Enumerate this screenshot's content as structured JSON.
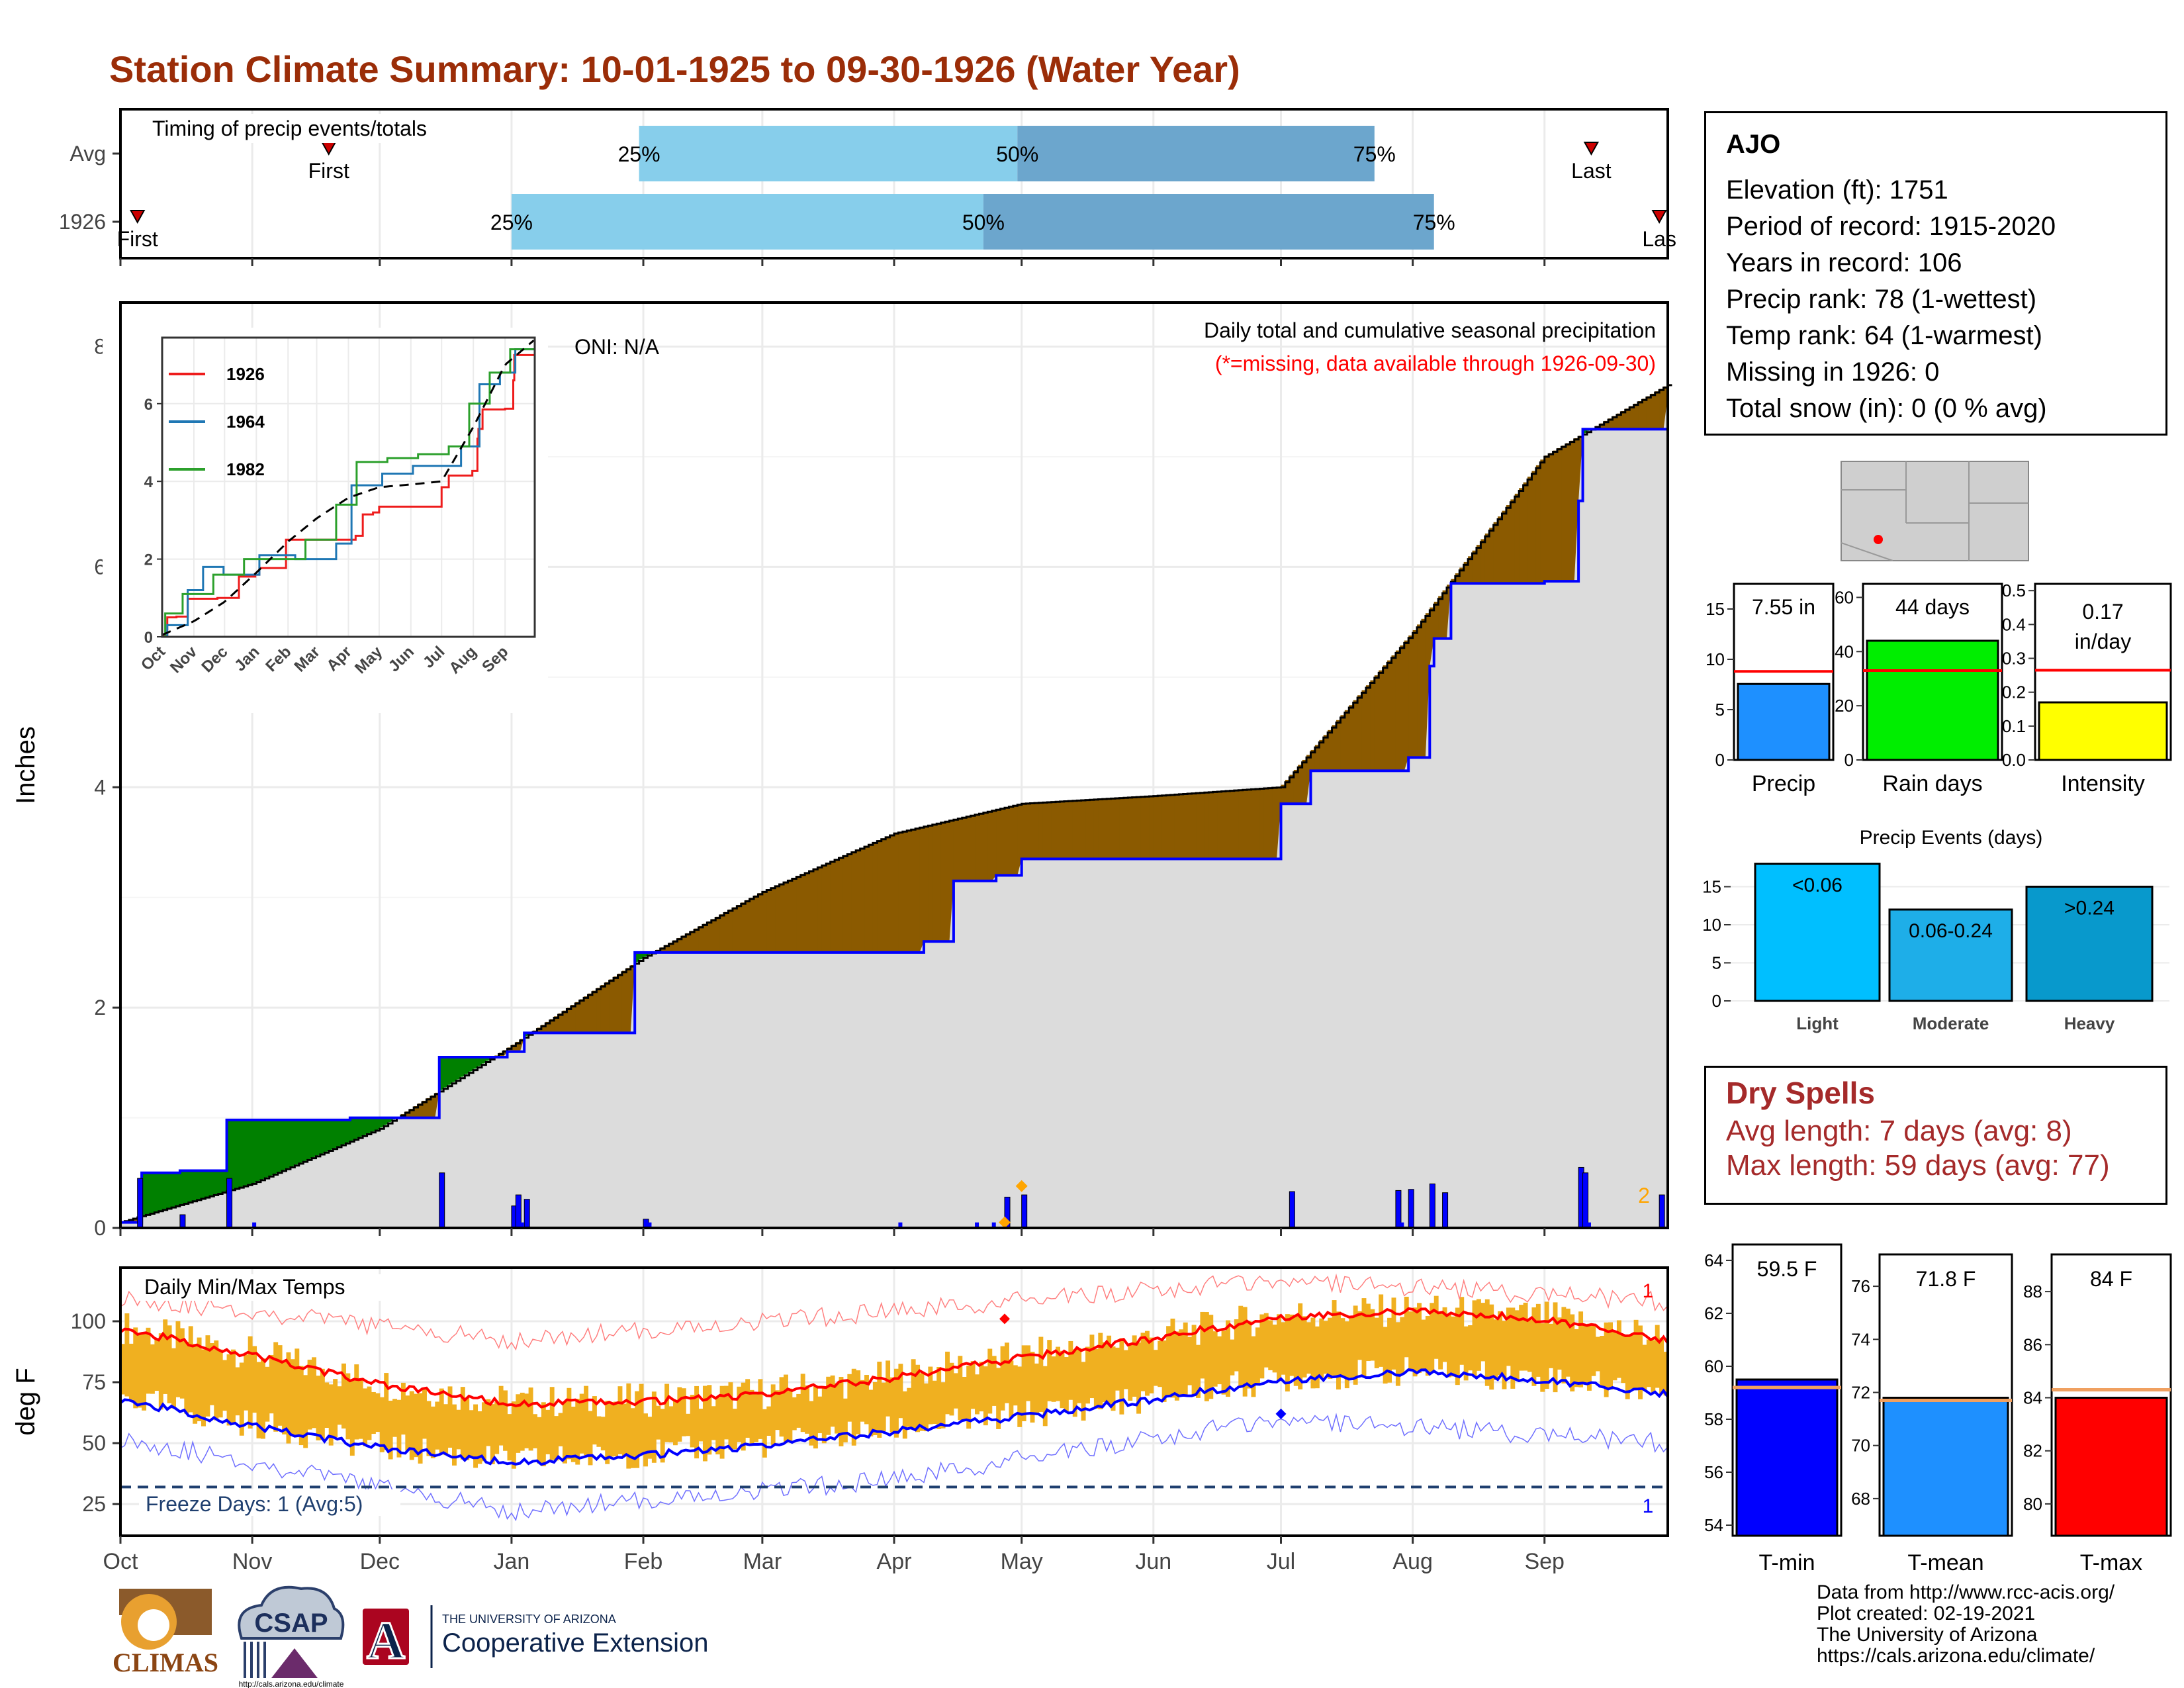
{
  "title": "Station Climate Summary: 10-01-1925 to 09-30-1926 (Water Year)",
  "months": [
    "Oct",
    "Nov",
    "Dec",
    "Jan",
    "Feb",
    "Mar",
    "Apr",
    "May",
    "Jun",
    "Jul",
    "Aug",
    "Sep"
  ],
  "timing": {
    "label": "Timing of precip events/totals",
    "rows": [
      "Avg",
      "1926"
    ],
    "pct_labels": [
      "25%",
      "50%",
      "75%"
    ],
    "first_label": "First",
    "last_label": "Last",
    "last_label_cut": "Las"
  },
  "precip_panel": {
    "ylabel": "Inches",
    "oni": "ONI: N/A",
    "label1": "Daily total and cumulative seasonal precipitation",
    "label2": "(*=missing, data available through 1926-09-30)",
    "yticks": [
      "0",
      "2",
      "4",
      "6",
      "8"
    ],
    "count_label": "2"
  },
  "inset": {
    "yticks": [
      "0",
      "2",
      "4",
      "6"
    ],
    "xticks": [
      "Oct",
      "Nov",
      "Dec",
      "Jan",
      "Feb",
      "Mar",
      "Apr",
      "May",
      "Jun",
      "Jul",
      "Aug",
      "Sep"
    ],
    "legend": [
      {
        "year": "1926",
        "color": "#ee1c1c"
      },
      {
        "year": "1964",
        "color": "#1f77b4"
      },
      {
        "year": "1982",
        "color": "#2ca02c"
      }
    ]
  },
  "temp_panel": {
    "ylabel": "deg F",
    "label": "Daily Min/Max Temps",
    "freeze": "Freeze Days: 1 (Avg:5)",
    "yticks": [
      "25",
      "50",
      "75",
      "100"
    ],
    "top_count": "1",
    "bottom_count": "1"
  },
  "station": {
    "name": "AJO",
    "lines": [
      "Elevation (ft): 1751",
      "Period of record: 1915-2020",
      "Years in record: 106",
      "Precip rank: 78 (1-wettest)",
      "Temp rank: 64 (1-warmest)",
      "Missing in 1926: 0",
      "Total snow (in): 0 (0 % avg)"
    ]
  },
  "mini_bars": [
    {
      "label": "Precip",
      "value": "7.55 in",
      "color": "#1e90ff",
      "yticks": [
        "0",
        "5",
        "10",
        "15"
      ]
    },
    {
      "label": "Rain days",
      "value": "44 days",
      "color": "#00ee00",
      "yticks": [
        "0",
        "20",
        "40",
        "60"
      ]
    },
    {
      "label": "Intensity",
      "value_l1": "0.17",
      "value_l2": "in/day",
      "color": "#ffff00",
      "yticks": [
        "0.0",
        "0.1",
        "0.2",
        "0.3",
        "0.4",
        "0.5"
      ]
    }
  ],
  "events": {
    "title": "Precip Events (days)",
    "yticks": [
      "0",
      "5",
      "10",
      "15"
    ],
    "bars": [
      {
        "label": "Light",
        "value_label": "<0.06",
        "color": "#00bfff"
      },
      {
        "label": "Moderate",
        "value_label": "0.06-0.24",
        "color": "#1eaee8"
      },
      {
        "label": "Heavy",
        "value_label": ">0.24",
        "color": "#0899cc"
      }
    ]
  },
  "dry_spells": {
    "title": "Dry Spells",
    "avg": "Avg length: 7 days (avg: 8)",
    "max": "Max length: 59 days (avg: 77)"
  },
  "temp_bars": [
    {
      "label": "T-min",
      "value": "59.5 F",
      "color": "#0000ff",
      "yticks": [
        "54",
        "56",
        "58",
        "60",
        "62",
        "64"
      ]
    },
    {
      "label": "T-mean",
      "value": "71.8 F",
      "color": "#1e90ff",
      "yticks": [
        "68",
        "70",
        "72",
        "74",
        "76"
      ]
    },
    {
      "label": "T-max",
      "value": "84 F",
      "color": "#ff0000",
      "yticks": [
        "80",
        "82",
        "84",
        "86",
        "88"
      ]
    }
  ],
  "credits": [
    "Data from http://www.rcc-acis.org/",
    "Plot created: 02-19-2021",
    "The University of Arizona",
    "https://cals.arizona.edu/climate/"
  ],
  "logos": {
    "climas": "CLIMAS",
    "csap": "CSAP",
    "csap_url": "http://cals.arizona.edu/climate",
    "ua_line1": "THE UNIVERSITY OF ARIZONA",
    "ua_line2": "Cooperative Extension",
    "ua_letter": "A"
  },
  "chart_data": [
    {
      "type": "bar",
      "title": "Timing of precip events/totals",
      "categories": [
        "Avg",
        "1926"
      ],
      "series": [
        {
          "name": "25%",
          "values": [
            "1926-01-31",
            "1926-01-01"
          ]
        },
        {
          "name": "50%",
          "values": [
            "1926-04-30",
            "1926-04-22"
          ]
        },
        {
          "name": "75%",
          "values": [
            "1926-07-23",
            "1926-08-06"
          ]
        }
      ],
      "first": [
        "1925-11-19",
        "1925-10-05"
      ],
      "last": [
        "1926-09-12",
        "1926-09-28"
      ]
    },
    {
      "type": "area",
      "title": "Daily total and cumulative seasonal precipitation",
      "ylabel": "Inches",
      "ylim": [
        0,
        8.4
      ],
      "series": [
        {
          "name": "1926 cumulative",
          "x": [
            "1925-10-01",
            "1925-10-06",
            "1925-10-15",
            "1925-10-26",
            "1925-11-24",
            "1925-12-15",
            "1925-12-31",
            "1926-01-04",
            "1926-01-30",
            "1926-03-16",
            "1926-04-08",
            "1926-04-15",
            "1926-04-25",
            "1926-05-01",
            "1926-07-01",
            "1926-07-08",
            "1926-07-31",
            "1926-08-05",
            "1926-08-06",
            "1926-08-10",
            "1926-09-01",
            "1926-09-09",
            "1926-09-10",
            "1926-09-29",
            "1926-09-30"
          ],
          "y": [
            0.05,
            0.5,
            0.52,
            0.98,
            1.0,
            1.55,
            1.6,
            1.77,
            2.5,
            2.5,
            2.6,
            3.15,
            3.2,
            3.35,
            3.85,
            4.15,
            4.27,
            5.1,
            5.35,
            5.85,
            5.87,
            6.6,
            7.25,
            7.25,
            7.55
          ]
        },
        {
          "name": "average cumulative",
          "x": [
            "1925-10-01",
            "1925-11-01",
            "1925-12-01",
            "1926-01-01",
            "1926-02-01",
            "1926-03-01",
            "1926-04-01",
            "1926-05-01",
            "1926-06-01",
            "1926-07-01",
            "1926-08-01",
            "1926-09-01",
            "1926-09-30"
          ],
          "y": [
            0.05,
            0.4,
            0.9,
            1.65,
            2.45,
            3.05,
            3.58,
            3.85,
            3.92,
            4.0,
            5.4,
            7.0,
            7.65
          ]
        },
        {
          "name": "daily precip",
          "x": [
            "1925-10-05",
            "1925-10-15",
            "1925-10-26",
            "1925-12-15",
            "1926-01-01",
            "1926-01-02",
            "1926-01-04",
            "1926-02-01",
            "1926-04-27",
            "1926-05-01",
            "1926-07-03",
            "1926-07-28",
            "1926-07-31",
            "1926-08-05",
            "1926-08-08",
            "1926-09-09",
            "1926-09-10",
            "1926-09-28"
          ],
          "y": [
            0.45,
            0.12,
            0.45,
            0.5,
            0.2,
            0.3,
            0.26,
            0.08,
            0.28,
            0.3,
            0.33,
            0.34,
            0.35,
            0.4,
            0.32,
            0.55,
            0.5,
            0.3
          ]
        }
      ]
    },
    {
      "type": "line",
      "title": "Inset cumulative precipitation",
      "ylim": [
        0,
        7.7
      ],
      "series": [
        {
          "name": "1926",
          "color": "#ee1c1c"
        },
        {
          "name": "1964",
          "color": "#1f77b4"
        },
        {
          "name": "1982",
          "color": "#2ca02c"
        }
      ]
    },
    {
      "type": "line",
      "title": "Daily Min/Max Temps",
      "ylabel": "deg F",
      "ylim": [
        12,
        122
      ],
      "series": [
        {
          "name": "avg max",
          "x": [
            "1925-10-01",
            "1925-11-01",
            "1925-12-01",
            "1926-01-01",
            "1926-02-01",
            "1926-03-01",
            "1926-04-01",
            "1926-05-01",
            "1926-06-01",
            "1926-07-01",
            "1926-08-01",
            "1926-09-01",
            "1926-09-30"
          ],
          "y": [
            97,
            86,
            74,
            66,
            67,
            70,
            77,
            85,
            93,
            102,
            104,
            101,
            92
          ]
        },
        {
          "name": "avg min",
          "x": [
            "1925-10-01",
            "1925-11-01",
            "1925-12-01",
            "1926-01-01",
            "1926-02-01",
            "1926-03-01",
            "1926-04-01",
            "1926-05-01",
            "1926-06-01",
            "1926-07-01",
            "1926-08-01",
            "1926-09-01",
            "1926-09-30"
          ],
          "y": [
            68,
            57,
            48,
            42,
            45,
            49,
            55,
            61,
            68,
            76,
            79,
            76,
            70
          ]
        },
        {
          "name": "record high",
          "x": [
            "1925-10-01",
            "1926-01-01",
            "1926-04-01",
            "1926-07-01",
            "1926-09-30"
          ],
          "y": [
            110,
            92,
            104,
            117,
            108
          ]
        },
        {
          "name": "record low",
          "x": [
            "1925-10-01",
            "1926-01-01",
            "1926-04-01",
            "1926-07-01",
            "1926-09-30"
          ],
          "y": [
            52,
            22,
            35,
            60,
            50
          ]
        }
      ],
      "freeze_line": 32
    }
  ]
}
